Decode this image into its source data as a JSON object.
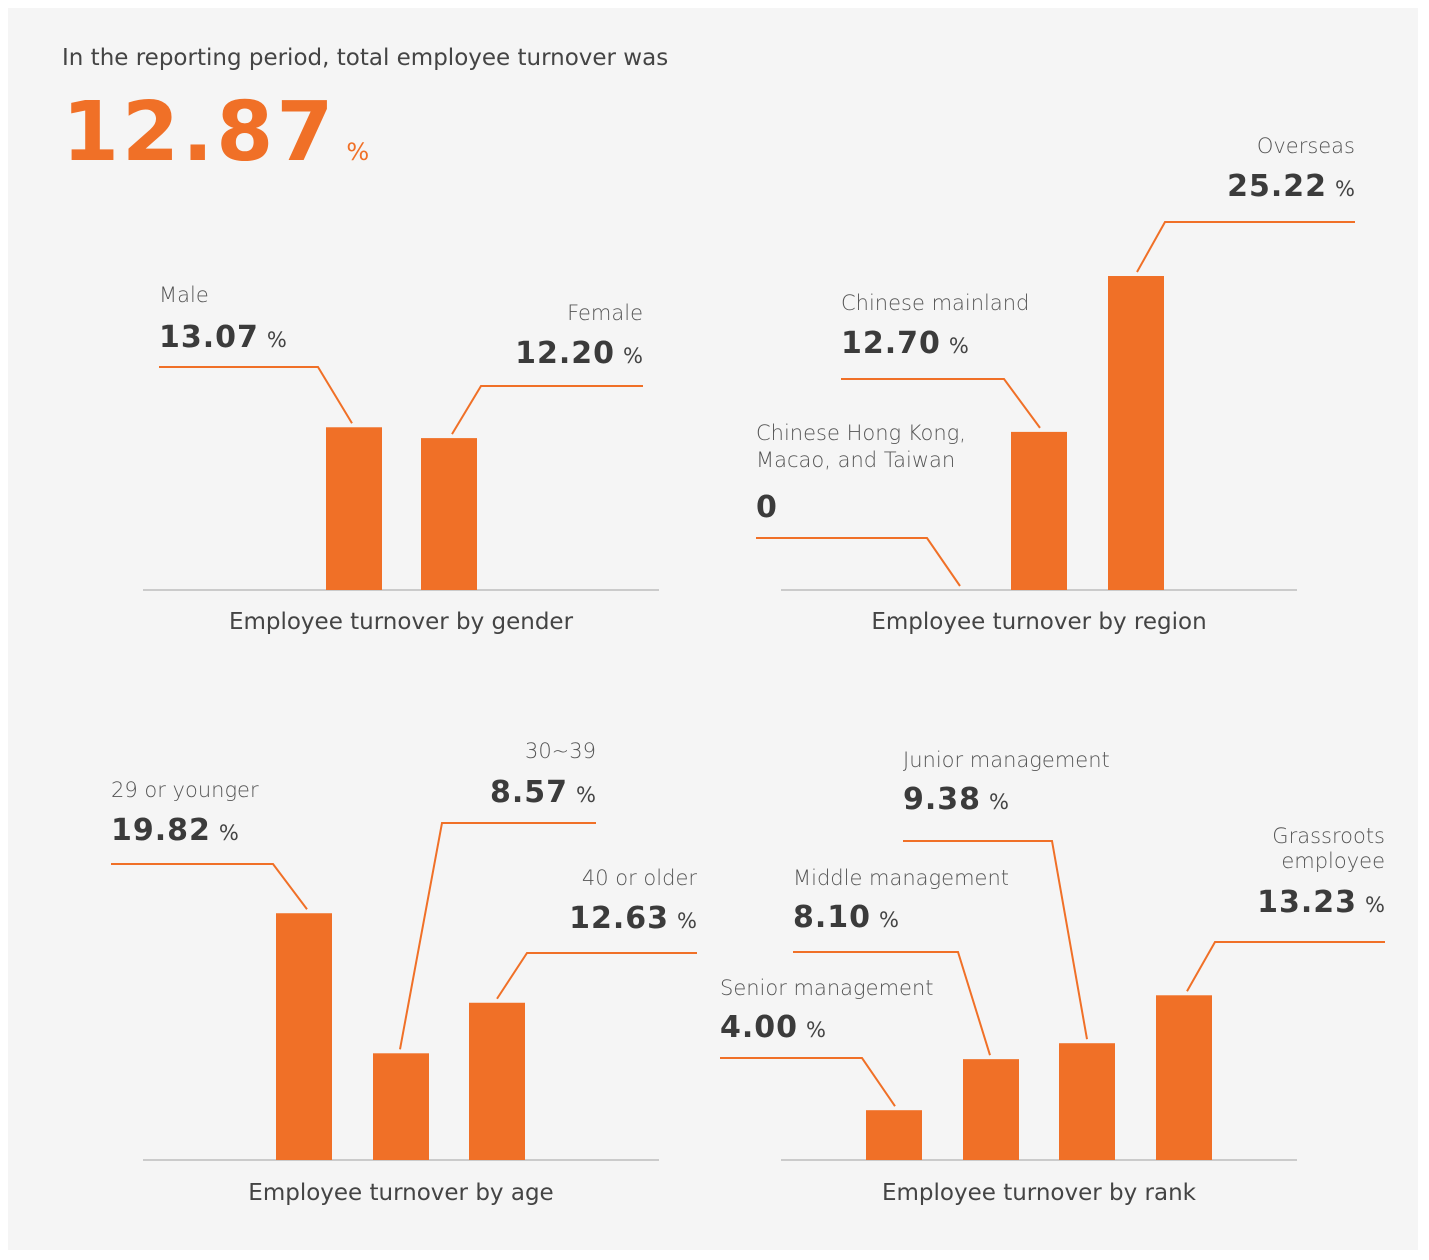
{
  "header": {
    "text": "In the reporting period, total employee turnover was",
    "value": 12.87,
    "unit": "%"
  },
  "chart_data": [
    {
      "type": "bar",
      "title": "Employee turnover by gender",
      "categories": [
        "Male",
        "Female"
      ],
      "values": [
        13.07,
        12.2
      ],
      "value_labels": [
        "13.07",
        "12.20"
      ],
      "units": [
        "%",
        "%"
      ],
      "color": "#f07027"
    },
    {
      "type": "bar",
      "title": "Employee turnover by region",
      "categories": [
        "Chinese Hong Kong, Macao, and Taiwan",
        "Chinese mainland",
        "Overseas"
      ],
      "values": [
        0,
        12.7,
        25.22
      ],
      "value_labels": [
        "0",
        "12.70",
        "25.22"
      ],
      "units": [
        null,
        "%",
        "%"
      ],
      "color": "#f07027"
    },
    {
      "type": "bar",
      "title": "Employee turnover by age",
      "categories": [
        "29 or younger",
        "30~39",
        "40 or older"
      ],
      "values": [
        19.82,
        8.57,
        12.63
      ],
      "value_labels": [
        "19.82",
        "8.57",
        "12.63"
      ],
      "units": [
        "%",
        "%",
        "%"
      ],
      "color": "#f07027"
    },
    {
      "type": "bar",
      "title": "Employee turnover by rank",
      "categories": [
        "Senior management",
        "Middle management",
        "Junior management",
        "Grassroots employee"
      ],
      "values": [
        4,
        8.1,
        9.38,
        13.23
      ],
      "value_labels": [
        "4.00",
        "8.10",
        "9.38",
        "13.23"
      ],
      "units": [
        "%",
        "%",
        "%",
        "%"
      ],
      "color": "#f07027"
    }
  ]
}
